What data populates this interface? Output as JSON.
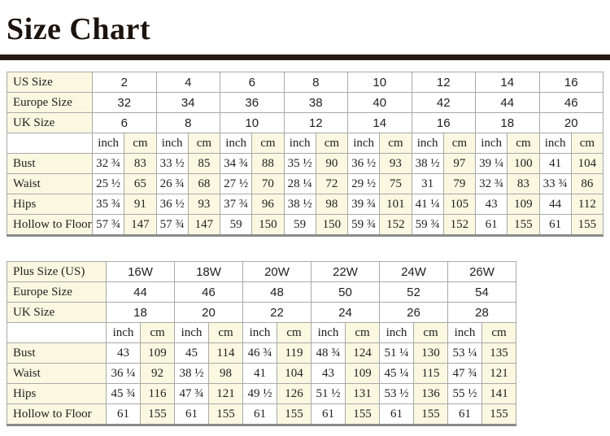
{
  "title": "Size Chart",
  "colors": {
    "background": "#FFFFFF",
    "cream_cell": "#FAF8E1",
    "grid_border": "#A9A9A9",
    "outer_border": "#8F8F8F",
    "divider_bar": "#261B13",
    "text": "#212121"
  },
  "chart_data": [
    {
      "type": "table",
      "unit_headers": [
        "inch",
        "cm"
      ],
      "size_rows": [
        {
          "label": "US Size",
          "values": [
            "2",
            "4",
            "6",
            "8",
            "10",
            "12",
            "14",
            "16"
          ]
        },
        {
          "label": "Europe Size",
          "values": [
            "32",
            "34",
            "36",
            "38",
            "40",
            "42",
            "44",
            "46"
          ]
        },
        {
          "label": "UK Size",
          "values": [
            "6",
            "8",
            "10",
            "12",
            "14",
            "16",
            "18",
            "20"
          ]
        }
      ],
      "measurement_rows": [
        {
          "label": "Bust",
          "inch": [
            "32 ¾",
            "33 ½",
            "34 ¾",
            "35 ½",
            "36 ½",
            "38 ½",
            "39 ¼",
            "41"
          ],
          "cm": [
            "83",
            "85",
            "88",
            "90",
            "93",
            "97",
            "100",
            "104"
          ]
        },
        {
          "label": "Waist",
          "inch": [
            "25 ½",
            "26 ¾",
            "27 ½",
            "28 ¼",
            "29 ½",
            "31",
            "32 ¾",
            "33 ¾"
          ],
          "cm": [
            "65",
            "68",
            "70",
            "72",
            "75",
            "79",
            "83",
            "86"
          ]
        },
        {
          "label": "Hips",
          "inch": [
            "35 ¾",
            "36 ½",
            "37 ¾",
            "38 ½",
            "39 ¾",
            "41 ¼",
            "43",
            "44"
          ],
          "cm": [
            "91",
            "93",
            "96",
            "98",
            "101",
            "105",
            "109",
            "112"
          ]
        },
        {
          "label": "Hollow to Floor",
          "inch": [
            "57 ¾",
            "57 ¾",
            "59",
            "59",
            "59 ¾",
            "59 ¾",
            "61",
            "61"
          ],
          "cm": [
            "147",
            "147",
            "150",
            "150",
            "152",
            "152",
            "155",
            "155"
          ]
        }
      ]
    },
    {
      "type": "table",
      "unit_headers": [
        "inch",
        "cm"
      ],
      "size_rows": [
        {
          "label": "Plus Size (US)",
          "values": [
            "16W",
            "18W",
            "20W",
            "22W",
            "24W",
            "26W"
          ]
        },
        {
          "label": "Europe Size",
          "values": [
            "44",
            "46",
            "48",
            "50",
            "52",
            "54"
          ]
        },
        {
          "label": "UK Size",
          "values": [
            "18",
            "20",
            "22",
            "24",
            "26",
            "28"
          ]
        }
      ],
      "measurement_rows": [
        {
          "label": "Bust",
          "inch": [
            "43",
            "45",
            "46 ¾",
            "48 ¾",
            "51 ¼",
            "53 ¼"
          ],
          "cm": [
            "109",
            "114",
            "119",
            "124",
            "130",
            "135"
          ]
        },
        {
          "label": "Waist",
          "inch": [
            "36 ¼",
            "38 ½",
            "41",
            "43",
            "45 ¼",
            "47 ¾"
          ],
          "cm": [
            "92",
            "98",
            "104",
            "109",
            "115",
            "121"
          ]
        },
        {
          "label": "Hips",
          "inch": [
            "45 ¾",
            "47 ¾",
            "49 ½",
            "51 ½",
            "53 ½",
            "55 ½"
          ],
          "cm": [
            "116",
            "121",
            "126",
            "131",
            "136",
            "141"
          ]
        },
        {
          "label": "Hollow to Floor",
          "inch": [
            "61",
            "61",
            "61",
            "61",
            "61",
            "61"
          ],
          "cm": [
            "155",
            "155",
            "155",
            "155",
            "155",
            "155"
          ]
        }
      ]
    }
  ]
}
